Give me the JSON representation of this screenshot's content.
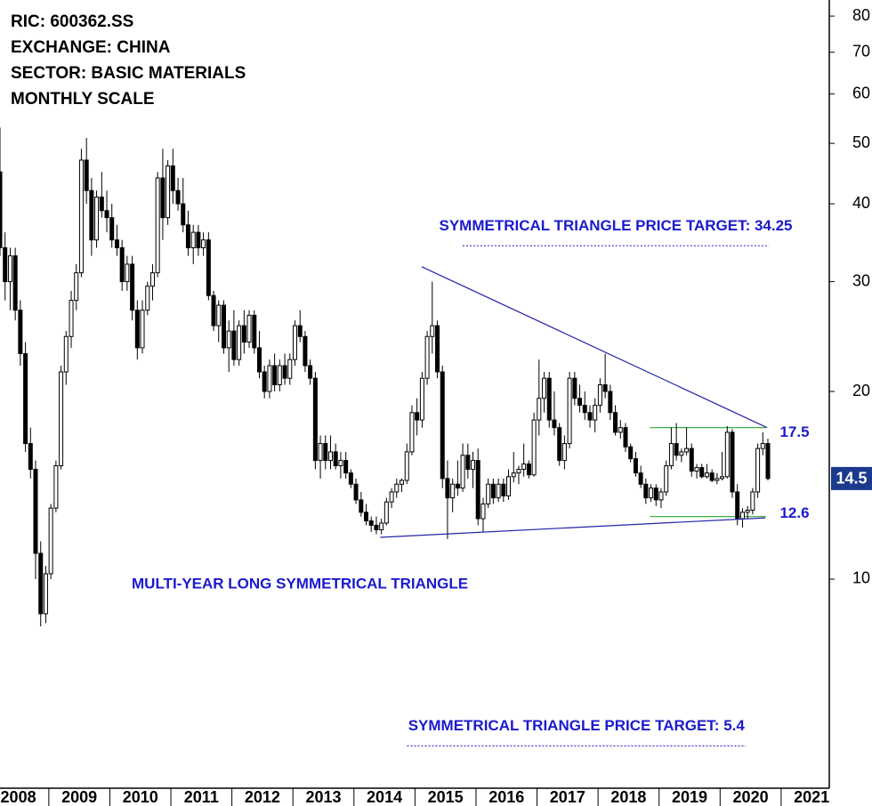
{
  "chart_data": {
    "type": "candlestick",
    "header_lines": [
      "RIC: 600362.SS",
      "EXCHANGE: CHINA",
      "SECTOR: BASIC MATERIALS",
      "MONTHLY SCALE"
    ],
    "log_scale": true,
    "xlim": [
      2008.2,
      2021.76
    ],
    "xticks": [
      2008,
      2009,
      2010,
      2011,
      2012,
      2013,
      2014,
      2015,
      2016,
      2017,
      2018,
      2019,
      2020,
      2021
    ],
    "ylim": [
      4.62,
      84.9
    ],
    "yticks": [
      10,
      20,
      30,
      40,
      50,
      60,
      70,
      80
    ],
    "x": [
      2008.2,
      2008.283,
      2008.367,
      2008.45,
      2008.533,
      2008.617,
      2008.7,
      2008.783,
      2008.867,
      2008.95,
      2009.033,
      2009.117,
      2009.2,
      2009.283,
      2009.367,
      2009.45,
      2009.533,
      2009.617,
      2009.7,
      2009.783,
      2009.867,
      2009.95,
      2010.033,
      2010.117,
      2010.2,
      2010.283,
      2010.367,
      2010.45,
      2010.533,
      2010.617,
      2010.7,
      2010.783,
      2010.867,
      2010.95,
      2011.033,
      2011.117,
      2011.2,
      2011.283,
      2011.367,
      2011.45,
      2011.533,
      2011.617,
      2011.7,
      2011.783,
      2011.867,
      2011.95,
      2012.033,
      2012.117,
      2012.2,
      2012.283,
      2012.367,
      2012.45,
      2012.533,
      2012.617,
      2012.7,
      2012.783,
      2012.867,
      2012.95,
      2013.033,
      2013.117,
      2013.2,
      2013.283,
      2013.367,
      2013.45,
      2013.533,
      2013.617,
      2013.7,
      2013.783,
      2013.867,
      2013.95,
      2014.033,
      2014.117,
      2014.2,
      2014.283,
      2014.367,
      2014.45,
      2014.533,
      2014.617,
      2014.7,
      2014.783,
      2014.867,
      2014.95,
      2015.033,
      2015.117,
      2015.2,
      2015.283,
      2015.367,
      2015.45,
      2015.533,
      2015.617,
      2015.7,
      2015.783,
      2015.867,
      2015.95,
      2016.033,
      2016.117,
      2016.2,
      2016.283,
      2016.367,
      2016.45,
      2016.533,
      2016.617,
      2016.7,
      2016.783,
      2016.867,
      2016.95,
      2017.033,
      2017.117,
      2017.2,
      2017.283,
      2017.367,
      2017.45,
      2017.533,
      2017.617,
      2017.7,
      2017.783,
      2017.867,
      2017.95,
      2018.033,
      2018.117,
      2018.2,
      2018.283,
      2018.367,
      2018.45,
      2018.533,
      2018.617,
      2018.7,
      2018.783,
      2018.867,
      2018.95,
      2019.033,
      2019.117,
      2019.2,
      2019.283,
      2019.367,
      2019.45,
      2019.533,
      2019.617,
      2019.7,
      2019.783,
      2019.867,
      2019.95,
      2020.033,
      2020.117,
      2020.2,
      2020.283,
      2020.367,
      2020.45,
      2020.533,
      2020.617,
      2020.7,
      2020.783
    ],
    "open": [
      45,
      34,
      30,
      33,
      27,
      23,
      16.5,
      15,
      11,
      8.8,
      10.2,
      13,
      15.2,
      21.5,
      24.5,
      28,
      31,
      47,
      42,
      35,
      41,
      39,
      38,
      35,
      34,
      30,
      32,
      27,
      23.5,
      27,
      29.5,
      31,
      44,
      38,
      46,
      42,
      40,
      37,
      34,
      36,
      34,
      35,
      28.5,
      25.5,
      27.5,
      23.5,
      25,
      22.5,
      25.5,
      24,
      26.5,
      23.5,
      21.5,
      20,
      22,
      20.5,
      22,
      21,
      22.5,
      25.5,
      24.5,
      22,
      21,
      15.5,
      16.5,
      15.5,
      16,
      15.2,
      15.5,
      14.8,
      14.2,
      13.4,
      12.8,
      12.4,
      12.2,
      12,
      12.3,
      13.3,
      13.8,
      14.2,
      14.4,
      16,
      18.5,
      18,
      21,
      24.5,
      25.5,
      21.5,
      14.5,
      13.5,
      14.2,
      14,
      15.8,
      15,
      15.5,
      12.5,
      13.2,
      14.2,
      13.5,
      14.2,
      13.6,
      14.6,
      14.8,
      15,
      15.3,
      14.7,
      18,
      19.5,
      21,
      18,
      17.5,
      15.5,
      16.5,
      21,
      19.5,
      19,
      18.5,
      18,
      19,
      20.5,
      20,
      18.5,
      17.2,
      17.5,
      16.3,
      15.6,
      14.8,
      14.2,
      13.5,
      14,
      13.4,
      13.8,
      15.2,
      16.5,
      15.8,
      16,
      16.2,
      14.9,
      15.1,
      14.6,
      14.8,
      14.4,
      14.5,
      14.6,
      17.2,
      13.8,
      12.5,
      12.8,
      12.9,
      13.8,
      16.2,
      16.5
    ],
    "high": [
      53,
      36,
      34,
      34,
      28,
      24,
      17.5,
      15.5,
      11.5,
      10.5,
      13.2,
      15.5,
      22,
      25,
      29,
      32,
      49,
      51,
      44,
      42,
      45,
      42,
      40,
      37,
      35,
      33,
      33,
      28,
      28,
      30,
      32,
      45,
      49,
      47,
      49,
      44,
      44,
      39,
      37,
      37,
      36,
      36,
      29,
      28,
      28,
      26,
      27,
      26,
      27,
      27,
      27,
      25,
      22,
      22.5,
      23,
      22.5,
      23,
      23,
      26,
      27,
      25,
      22.5,
      21.5,
      17,
      17,
      17,
      16.5,
      16,
      16,
      15,
      14.5,
      13.8,
      13.2,
      12.6,
      12.6,
      12.5,
      13.5,
      14,
      14.5,
      14.5,
      16.5,
      19,
      19.5,
      21.5,
      25,
      30,
      26,
      22,
      15.5,
      14.5,
      15.5,
      16.5,
      16.5,
      16,
      16.2,
      13.5,
      14.5,
      14.5,
      14.5,
      14.5,
      15,
      16,
      15.2,
      16.5,
      15.5,
      18.5,
      22.5,
      21.5,
      21.5,
      20,
      17.8,
      17,
      21.5,
      21.5,
      20.5,
      20,
      19,
      19.5,
      21,
      23,
      20.5,
      19,
      18,
      17.8,
      16.5,
      16,
      15.2,
      14.5,
      14.2,
      14.2,
      14,
      15.5,
      17.5,
      17.8,
      16.2,
      17.5,
      16.5,
      15.3,
      15.3,
      15.3,
      15,
      14.8,
      16,
      17.6,
      17.4,
      14.2,
      13,
      13.1,
      14,
      16.5,
      17.2,
      16.8
    ],
    "low": [
      33,
      28,
      27,
      26,
      22,
      16,
      14.5,
      10,
      8.4,
      8.5,
      10,
      12.8,
      15,
      20.5,
      23.5,
      27,
      30.5,
      40,
      33,
      34,
      38,
      36,
      34,
      33,
      29,
      29,
      26,
      22.5,
      23,
      26.5,
      28,
      30.5,
      35,
      37,
      40,
      39,
      36,
      33,
      32,
      33,
      33,
      28,
      25,
      24,
      23,
      21.5,
      22,
      22,
      23,
      23.5,
      23,
      21,
      19.5,
      19.5,
      20,
      20,
      20.5,
      20.5,
      22,
      24,
      21.5,
      20.5,
      15,
      14.5,
      15,
      15,
      15,
      14.5,
      14.5,
      14,
      13.2,
      12.6,
      12.2,
      11.9,
      11.8,
      11.8,
      12.2,
      13,
      13.5,
      13.8,
      14.2,
      15.8,
      17,
      17.5,
      20.5,
      23,
      21,
      14,
      11.6,
      12.8,
      13.6,
      13.8,
      14.5,
      14,
      12.2,
      11.9,
      13,
      13.2,
      13.3,
      13.3,
      13.4,
      14.3,
      14.2,
      14.6,
      14.5,
      14.6,
      17,
      18.5,
      17.5,
      17,
      15.2,
      15,
      16.2,
      19,
      18.5,
      18,
      17.5,
      17.2,
      18.5,
      19.5,
      18,
      17,
      16.8,
      16,
      15.4,
      14.6,
      14,
      13.2,
      13.3,
      13.1,
      13,
      13.6,
      15,
      15.5,
      15.4,
      15.8,
      14.6,
      14.5,
      14.5,
      14.5,
      14.3,
      14.2,
      14.4,
      14.5,
      13.5,
      12.2,
      12.1,
      12.5,
      12.7,
      13.5,
      15.8,
      14.4
    ],
    "close": [
      34,
      30,
      33,
      27,
      23,
      16.5,
      15,
      11,
      8.8,
      10.2,
      13,
      15.2,
      21.5,
      24.5,
      28,
      31,
      47,
      42,
      35,
      41,
      39,
      38,
      35,
      34,
      30,
      32,
      27,
      23.5,
      27,
      29.5,
      31,
      44,
      38,
      46,
      42,
      40,
      37,
      34,
      36,
      34,
      35,
      28.5,
      25.5,
      27.5,
      23.5,
      25,
      22.5,
      25.5,
      24,
      26.5,
      23.5,
      21.5,
      20,
      22,
      20.5,
      22,
      21,
      22.5,
      25.5,
      24.5,
      22,
      21,
      15.5,
      16.5,
      15.5,
      16,
      15.2,
      15.5,
      14.8,
      14.2,
      13.4,
      12.8,
      12.4,
      12.2,
      12,
      12.3,
      13.3,
      13.8,
      14.2,
      14.4,
      16,
      18.5,
      18,
      21,
      24.5,
      25.5,
      21.5,
      14.5,
      13.5,
      14.2,
      14,
      15.8,
      15,
      15.5,
      12.5,
      13.2,
      14.2,
      13.5,
      14.2,
      13.6,
      14.6,
      14.8,
      15,
      15.3,
      14.7,
      18,
      19.5,
      21,
      18,
      17.5,
      15.5,
      16.5,
      21,
      19.5,
      19,
      18.5,
      18,
      19,
      20.5,
      20,
      18.5,
      17.2,
      17.5,
      16.3,
      15.6,
      14.8,
      14.2,
      13.5,
      14,
      13.4,
      13.8,
      15.2,
      16.5,
      15.8,
      16,
      16.2,
      14.9,
      15.1,
      14.6,
      14.8,
      14.4,
      14.5,
      14.6,
      17.2,
      13.8,
      12.5,
      12.8,
      12.9,
      13.8,
      16.2,
      16.5,
      14.5
    ],
    "up_color": "#ffffff",
    "down_color": "#000000",
    "targets": [
      {
        "text": "SYMMETRICAL TRIANGLE PRICE TARGET: 34.25",
        "value": 34.25,
        "x": [
          2015.78,
          2020.8
        ]
      },
      {
        "text": "SYMMETRICAL TRIANGLE PRICE TARGET: 5.4",
        "value": 5.4,
        "x": [
          2014.87,
          2020.42
        ]
      }
    ],
    "pattern_label": "MULTI-YEAR LONG SYMMETRICAL TRIANGLE",
    "trendlines": [
      {
        "x": [
          2015.11,
          2020.77
        ],
        "y": [
          31.7,
          17.5
        ]
      },
      {
        "x": [
          2014.43,
          2020.74
        ],
        "y": [
          11.67,
          12.54
        ]
      }
    ],
    "trendline_color": "#2323a8",
    "levels": {
      "values": [
        17.5,
        12.6
      ],
      "x": [
        2018.85,
        2020.75
      ],
      "color": "#3cb043"
    },
    "last_price": 14.5,
    "last_price_color": "#1b3a8c"
  }
}
